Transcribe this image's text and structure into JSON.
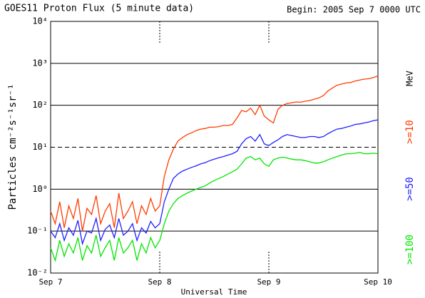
{
  "chart_data": {
    "type": "line",
    "title": "GOES11 Proton Flux (5 minute data)",
    "subtitle": "Begin: 2005 Sep 7 0000 UTC",
    "x_label": "Universal Time",
    "y_label": "Particles cm⁻²s⁻¹sr⁻¹",
    "legend_unit": "MeV",
    "legend": "right",
    "log_y": true,
    "grid": true,
    "threshold_line": 10,
    "x": [
      0,
      1,
      2,
      3,
      4,
      5,
      6,
      7,
      8,
      9,
      10,
      11,
      12,
      13,
      14,
      15,
      16,
      17,
      18,
      19,
      20,
      21,
      22,
      23,
      24,
      25,
      26,
      27,
      28,
      29,
      30,
      31,
      32,
      33,
      34,
      35,
      36,
      37,
      38,
      39,
      40,
      41,
      42,
      43,
      44,
      45,
      46,
      47,
      48,
      49,
      50,
      51,
      52,
      53,
      54,
      55,
      56,
      57,
      58,
      59,
      60,
      61,
      62,
      63,
      64,
      65,
      66,
      67,
      68,
      69,
      70,
      71,
      72
    ],
    "xlim": [
      0,
      72
    ],
    "xticks": [
      {
        "value": 0,
        "label": "Sep 7"
      },
      {
        "value": 24,
        "label": "Sep 8"
      },
      {
        "value": 48,
        "label": "Sep 9"
      },
      {
        "value": 72,
        "label": "Sep 10"
      }
    ],
    "ylim": [
      0.01,
      10000
    ],
    "yticks": [
      {
        "value": 0.01,
        "label": "10⁻²"
      },
      {
        "value": 0.1,
        "label": "10⁻¹"
      },
      {
        "value": 1,
        "label": "10⁰"
      },
      {
        "value": 10,
        "label": "10¹"
      },
      {
        "value": 100,
        "label": "10²"
      },
      {
        "value": 1000,
        "label": "10³"
      },
      {
        "value": 10000,
        "label": "10⁴"
      }
    ],
    "series": [
      {
        "name": ">=10",
        "color": "#ff3c00",
        "values": [
          0.3,
          0.15,
          0.5,
          0.12,
          0.4,
          0.2,
          0.6,
          0.1,
          0.35,
          0.25,
          0.7,
          0.15,
          0.3,
          0.45,
          0.12,
          0.8,
          0.2,
          0.3,
          0.5,
          0.15,
          0.4,
          0.25,
          0.6,
          0.3,
          0.4,
          2,
          5,
          9,
          14,
          17,
          20,
          22,
          25,
          27,
          28,
          30,
          30,
          31,
          33,
          33,
          35,
          50,
          75,
          70,
          85,
          60,
          100,
          55,
          45,
          38,
          80,
          100,
          110,
          115,
          120,
          118,
          125,
          130,
          140,
          150,
          170,
          220,
          260,
          300,
          320,
          340,
          350,
          380,
          400,
          420,
          430,
          460,
          500
        ]
      },
      {
        "name": ">=50",
        "color": "#2020ff",
        "values": [
          0.1,
          0.07,
          0.15,
          0.06,
          0.12,
          0.08,
          0.18,
          0.05,
          0.1,
          0.09,
          0.2,
          0.06,
          0.11,
          0.14,
          0.07,
          0.2,
          0.08,
          0.1,
          0.15,
          0.06,
          0.12,
          0.09,
          0.17,
          0.12,
          0.15,
          0.5,
          1,
          1.8,
          2.3,
          2.7,
          3,
          3.3,
          3.6,
          4,
          4.3,
          4.8,
          5.2,
          5.6,
          6,
          6.5,
          7,
          8,
          12,
          16,
          18,
          14,
          20,
          12,
          11,
          13,
          15,
          18,
          20,
          19,
          18,
          17,
          17,
          18,
          18,
          17,
          18,
          21,
          24,
          27,
          28,
          30,
          32,
          35,
          36,
          38,
          40,
          43,
          45
        ]
      },
      {
        "name": ">=100",
        "color": "#00e600",
        "values": [
          0.04,
          0.02,
          0.06,
          0.025,
          0.05,
          0.03,
          0.07,
          0.02,
          0.045,
          0.03,
          0.08,
          0.025,
          0.04,
          0.06,
          0.02,
          0.07,
          0.03,
          0.04,
          0.06,
          0.02,
          0.05,
          0.03,
          0.07,
          0.04,
          0.06,
          0.15,
          0.3,
          0.45,
          0.6,
          0.7,
          0.8,
          0.9,
          1,
          1.1,
          1.2,
          1.4,
          1.6,
          1.8,
          2,
          2.3,
          2.6,
          3,
          4,
          5.5,
          6,
          5,
          5.5,
          4,
          3.5,
          5,
          5.5,
          5.8,
          5.5,
          5.2,
          5,
          5,
          4.8,
          4.5,
          4.2,
          4.2,
          4.5,
          5,
          5.5,
          6,
          6.5,
          7,
          7,
          7.2,
          7.5,
          7,
          7,
          7.2,
          7
        ]
      }
    ]
  }
}
